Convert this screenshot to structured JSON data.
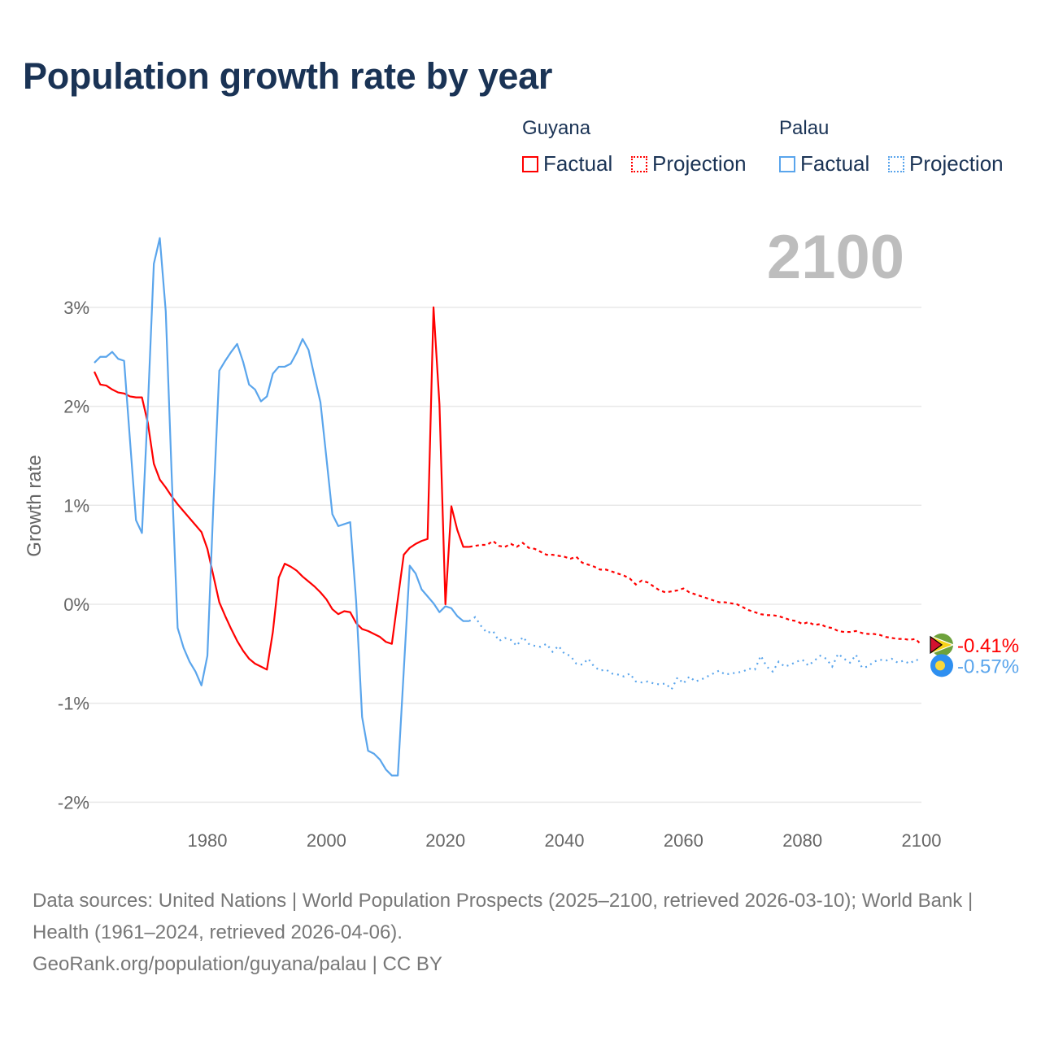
{
  "title": "Population growth rate by year",
  "legend": {
    "groups": [
      {
        "name": "Guyana",
        "factual": "Factual",
        "projection": "Projection",
        "color": "#ff0000"
      },
      {
        "name": "Palau",
        "factual": "Factual",
        "projection": "Projection",
        "color": "#5aa5ec"
      }
    ]
  },
  "year_display": "2100",
  "footer": {
    "sources": "Data sources: United Nations | World Population Prospects (2025–2100, retrieved 2026-03-10); World Bank | Health (1961–2024, retrieved 2026-04-06).",
    "credit": "GeoRank.org/population/guyana/palau | CC BY"
  },
  "chart_data": {
    "type": "line",
    "title": "Population growth rate by year",
    "xlabel": "",
    "ylabel": "Growth rate",
    "xlim": [
      1961,
      2100
    ],
    "ylim": [
      -2.2,
      3.8
    ],
    "x_ticks": [
      1980,
      2000,
      2020,
      2040,
      2060,
      2080,
      2100
    ],
    "x_tick_labels": [
      "1980",
      "2000",
      "2020",
      "2040",
      "2060",
      "2080",
      "2100"
    ],
    "y_ticks": [
      3,
      2,
      1,
      0,
      -1,
      -2
    ],
    "y_tick_labels": [
      "3%",
      "2%",
      "1%",
      "0%",
      "-1%",
      "-2%"
    ],
    "grid": true,
    "legend_placement": "top-right",
    "series": [
      {
        "name": "Guyana",
        "color": "#ff0000",
        "end_label": "-0.41%",
        "flag": "guyana-flag",
        "factual_start": 1961,
        "factual": [
          2.35,
          2.22,
          2.21,
          2.17,
          2.14,
          2.13,
          2.1,
          2.09,
          2.09,
          1.83,
          1.42,
          1.26,
          1.18,
          1.09,
          1.01,
          0.94,
          0.87,
          0.8,
          0.73,
          0.56,
          0.29,
          0.02,
          -0.12,
          -0.25,
          -0.37,
          -0.47,
          -0.55,
          -0.6,
          -0.63,
          -0.66,
          -0.28,
          0.27,
          0.41,
          0.38,
          0.34,
          0.28,
          0.23,
          0.18,
          0.12,
          0.05,
          -0.05,
          -0.1,
          -0.07,
          -0.08,
          -0.19,
          -0.25,
          -0.27,
          -0.3,
          -0.33,
          -0.38,
          -0.4,
          0.05,
          0.5,
          0.57,
          0.61,
          0.64,
          0.66,
          3.0,
          2.02,
          0.0,
          0.99,
          0.75,
          0.58,
          0.58
        ],
        "projection_start": 2025,
        "projection": [
          0.59,
          0.6,
          0.6,
          0.64,
          0.59,
          0.58,
          0.61,
          0.58,
          0.62,
          0.57,
          0.56,
          0.53,
          0.5,
          0.5,
          0.49,
          0.48,
          0.46,
          0.48,
          0.42,
          0.4,
          0.38,
          0.35,
          0.35,
          0.33,
          0.31,
          0.29,
          0.26,
          0.2,
          0.24,
          0.22,
          0.18,
          0.14,
          0.12,
          0.13,
          0.14,
          0.16,
          0.12,
          0.1,
          0.08,
          0.06,
          0.04,
          0.02,
          0.02,
          0.01,
          0.0,
          -0.03,
          -0.06,
          -0.08,
          -0.1,
          -0.11,
          -0.11,
          -0.12,
          -0.14,
          -0.16,
          -0.17,
          -0.2,
          -0.18,
          -0.21,
          -0.2,
          -0.23,
          -0.24,
          -0.27,
          -0.28,
          -0.28,
          -0.27,
          -0.29,
          -0.3,
          -0.3,
          -0.31,
          -0.33,
          -0.34,
          -0.35,
          -0.35,
          -0.36,
          -0.35,
          -0.41
        ]
      },
      {
        "name": "Palau",
        "color": "#5aa5ec",
        "end_label": "-0.57%",
        "flag": "palau-flag",
        "factual_start": 1961,
        "factual": [
          2.44,
          2.5,
          2.5,
          2.55,
          2.48,
          2.46,
          1.65,
          0.85,
          0.72,
          2.0,
          3.44,
          3.7,
          2.96,
          1.3,
          -0.24,
          -0.44,
          -0.58,
          -0.68,
          -0.82,
          -0.52,
          1.0,
          2.36,
          2.46,
          2.55,
          2.63,
          2.45,
          2.22,
          2.17,
          2.05,
          2.1,
          2.33,
          2.4,
          2.4,
          2.43,
          2.54,
          2.68,
          2.57,
          2.3,
          2.04,
          1.48,
          0.91,
          0.79,
          0.81,
          0.83,
          0.03,
          -1.14,
          -1.48,
          -1.51,
          -1.57,
          -1.67,
          -1.73,
          -1.73,
          -0.67,
          0.39,
          0.31,
          0.15,
          0.08,
          0.01,
          -0.08,
          -0.02,
          -0.04,
          -0.12,
          -0.17,
          -0.17
        ],
        "projection_start": 2025,
        "projection": [
          -0.13,
          -0.22,
          -0.29,
          -0.27,
          -0.37,
          -0.34,
          -0.36,
          -0.42,
          -0.33,
          -0.4,
          -0.42,
          -0.43,
          -0.4,
          -0.48,
          -0.42,
          -0.5,
          -0.52,
          -0.6,
          -0.61,
          -0.55,
          -0.63,
          -0.67,
          -0.66,
          -0.7,
          -0.71,
          -0.73,
          -0.7,
          -0.78,
          -0.79,
          -0.78,
          -0.8,
          -0.81,
          -0.8,
          -0.86,
          -0.74,
          -0.8,
          -0.73,
          -0.78,
          -0.76,
          -0.73,
          -0.7,
          -0.67,
          -0.71,
          -0.7,
          -0.69,
          -0.68,
          -0.65,
          -0.66,
          -0.52,
          -0.63,
          -0.68,
          -0.58,
          -0.63,
          -0.61,
          -0.58,
          -0.56,
          -0.62,
          -0.57,
          -0.52,
          -0.55,
          -0.63,
          -0.5,
          -0.55,
          -0.59,
          -0.51,
          -0.64,
          -0.63,
          -0.58,
          -0.56,
          -0.57,
          -0.55,
          -0.59,
          -0.57,
          -0.6,
          -0.56,
          -0.57
        ]
      }
    ]
  }
}
